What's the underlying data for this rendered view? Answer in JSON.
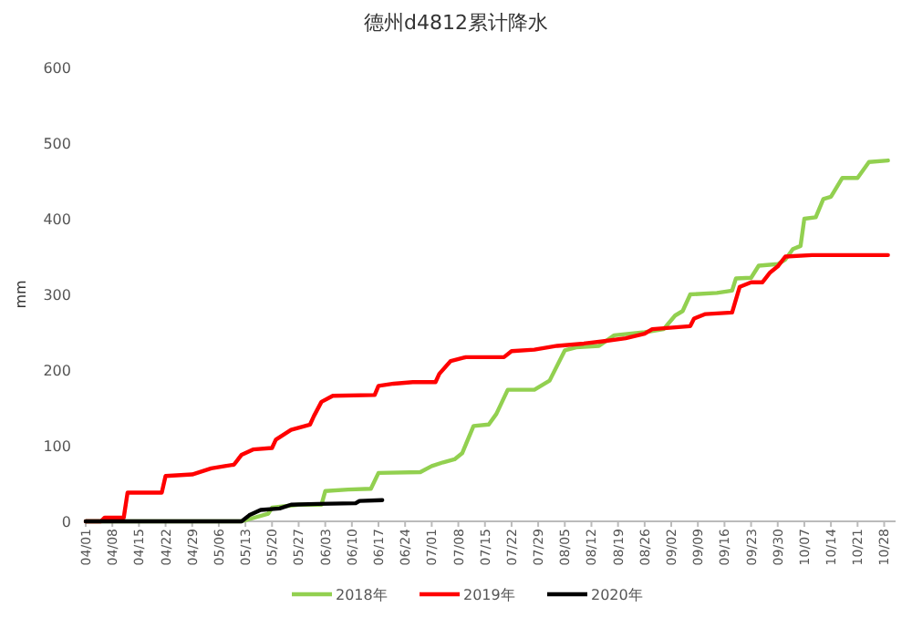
{
  "chart_data": {
    "type": "line",
    "title": "德州d4812累计降水",
    "ylabel": "mm",
    "legend": "bottom",
    "xlim": [
      "--04-01",
      "--10-31"
    ],
    "xticks": [
      {
        "value": "--04-01",
        "label": "04/01"
      },
      {
        "value": "--04-08",
        "label": "04/08"
      },
      {
        "value": "--04-15",
        "label": "04/15"
      },
      {
        "value": "--04-22",
        "label": "04/22"
      },
      {
        "value": "--04-29",
        "label": "04/29"
      },
      {
        "value": "--05-06",
        "label": "05/06"
      },
      {
        "value": "--05-13",
        "label": "05/13"
      },
      {
        "value": "--05-20",
        "label": "05/20"
      },
      {
        "value": "--05-27",
        "label": "05/27"
      },
      {
        "value": "--06-03",
        "label": "06/03"
      },
      {
        "value": "--06-10",
        "label": "06/10"
      },
      {
        "value": "--06-17",
        "label": "06/17"
      },
      {
        "value": "--06-24",
        "label": "06/24"
      },
      {
        "value": "--07-01",
        "label": "07/01"
      },
      {
        "value": "--07-08",
        "label": "07/08"
      },
      {
        "value": "--07-15",
        "label": "07/15"
      },
      {
        "value": "--07-22",
        "label": "07/22"
      },
      {
        "value": "--07-29",
        "label": "07/29"
      },
      {
        "value": "--08-05",
        "label": "08/05"
      },
      {
        "value": "--08-12",
        "label": "08/12"
      },
      {
        "value": "--08-19",
        "label": "08/19"
      },
      {
        "value": "--08-26",
        "label": "08/26"
      },
      {
        "value": "--09-02",
        "label": "09/02"
      },
      {
        "value": "--09-09",
        "label": "09/09"
      },
      {
        "value": "--09-16",
        "label": "09/16"
      },
      {
        "value": "--09-23",
        "label": "09/23"
      },
      {
        "value": "--09-30",
        "label": "09/30"
      },
      {
        "value": "--10-07",
        "label": "10/07"
      },
      {
        "value": "--10-14",
        "label": "10/14"
      },
      {
        "value": "--10-21",
        "label": "10/21"
      },
      {
        "value": "--10-28",
        "label": "10/28"
      }
    ],
    "ylim": [
      0,
      600
    ],
    "yticks": [
      0,
      100,
      200,
      300,
      400,
      500,
      600
    ],
    "series": [
      {
        "name": "2018年",
        "color": "#92d050",
        "x": [
          "--04-01",
          "--05-12",
          "--05-19",
          "--05-20",
          "--05-27",
          "--06-02",
          "--06-03",
          "--06-09",
          "--06-15",
          "--06-17",
          "--06-28",
          "--07-01",
          "--07-04",
          "--07-07",
          "--07-09",
          "--07-12",
          "--07-16",
          "--07-18",
          "--07-21",
          "--07-28",
          "--08-01",
          "--08-05",
          "--08-08",
          "--08-14",
          "--08-18",
          "--08-26",
          "--08-31",
          "--09-03",
          "--09-05",
          "--09-07",
          "--09-14",
          "--09-18",
          "--09-19",
          "--09-23",
          "--09-25",
          "--09-30",
          "--10-02",
          "--10-04",
          "--10-06",
          "--10-07",
          "--10-10",
          "--10-12",
          "--10-14",
          "--10-17",
          "--10-21",
          "--10-24",
          "--10-29"
        ],
        "values": [
          0,
          0,
          10,
          18,
          22,
          22,
          40,
          42,
          43,
          64,
          65,
          73,
          78,
          82,
          90,
          126,
          128,
          142,
          174,
          174,
          186,
          226,
          230,
          232,
          246,
          250,
          254,
          272,
          278,
          300,
          302,
          305,
          321,
          322,
          338,
          340,
          346,
          360,
          364,
          400,
          402,
          426,
          429,
          454,
          454,
          475,
          477
        ]
      },
      {
        "name": "2019年",
        "color": "#ff0000",
        "x": [
          "--04-01",
          "--04-05",
          "--04-06",
          "--04-11",
          "--04-12",
          "--04-21",
          "--04-22",
          "--04-29",
          "--05-04",
          "--05-10",
          "--05-12",
          "--05-15",
          "--05-20",
          "--05-21",
          "--05-25",
          "--05-30",
          "--05-31",
          "--06-02",
          "--06-05",
          "--06-16",
          "--06-17",
          "--06-21",
          "--06-26",
          "--07-02",
          "--07-03",
          "--07-06",
          "--07-10",
          "--07-20",
          "--07-22",
          "--07-28",
          "--08-03",
          "--08-10",
          "--08-15",
          "--08-21",
          "--08-26",
          "--08-28",
          "--09-07",
          "--09-08",
          "--09-11",
          "--09-18",
          "--09-20",
          "--09-23",
          "--09-26",
          "--09-28",
          "--09-30",
          "--10-02",
          "--10-09",
          "--10-29"
        ],
        "values": [
          0,
          0,
          5,
          5,
          38,
          38,
          60,
          62,
          70,
          75,
          88,
          95,
          97,
          108,
          121,
          128,
          139,
          158,
          166,
          167,
          179,
          182,
          184,
          184,
          195,
          212,
          217,
          217,
          225,
          227,
          232,
          235,
          238,
          242,
          248,
          254,
          258,
          268,
          274,
          276,
          310,
          316,
          316,
          329,
          337,
          350,
          352,
          352
        ]
      },
      {
        "name": "2020年",
        "color": "#000000",
        "x": [
          "--04-01",
          "--05-12",
          "--05-14",
          "--05-17",
          "--05-22",
          "--05-25",
          "--06-01",
          "--06-11",
          "--06-12",
          "--06-18"
        ],
        "values": [
          0,
          0,
          8,
          15,
          17,
          22,
          23,
          24,
          27,
          28
        ]
      }
    ]
  }
}
